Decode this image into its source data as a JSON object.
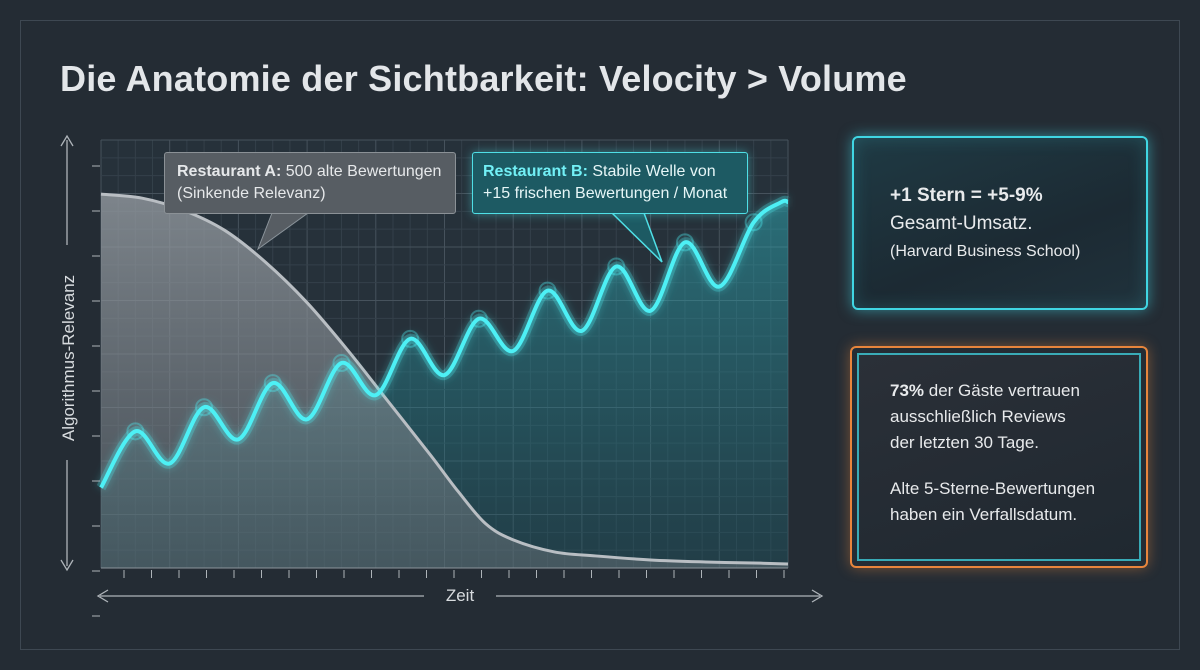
{
  "title": "Die Anatomie der Sichtbarkeit: Velocity > Volume",
  "colors": {
    "restaurant_a": "#9aa0a6",
    "restaurant_b": "#4df0f5",
    "card_cyan_border": "#40d6e3",
    "card_orange_border": "#e8853c",
    "background": "#242c34"
  },
  "chart_data": {
    "type": "area",
    "xlabel": "Zeit",
    "ylabel": "Algorithmus-Relevanz",
    "xlim": [
      0,
      100
    ],
    "ylim": [
      0,
      100
    ],
    "grid": true,
    "series": [
      {
        "name": "Restaurant A",
        "x": [
          0,
          6,
          12,
          18,
          24,
          30,
          36,
          42,
          48,
          52,
          56,
          60,
          66,
          72,
          80,
          88,
          96,
          100
        ],
        "values": [
          93,
          92,
          89,
          84,
          76,
          66,
          54,
          41,
          28,
          19,
          11,
          7,
          4,
          3,
          2,
          1.5,
          1.2,
          1
        ]
      },
      {
        "name": "Restaurant B",
        "x": [
          0,
          5,
          10,
          15,
          20,
          25,
          30,
          35,
          40,
          45,
          50,
          55,
          60,
          65,
          70,
          75,
          80,
          85,
          90,
          95,
          99,
          100
        ],
        "values": [
          20,
          34,
          26,
          40,
          32,
          46,
          37,
          51,
          43,
          57,
          48,
          62,
          54,
          69,
          59,
          75,
          64,
          81,
          70,
          86,
          91,
          91
        ]
      }
    ],
    "annotations": [
      {
        "series": "Restaurant A",
        "bold": "Restaurant A:",
        "text": " 500 alte Bewertungen",
        "line2": "(Sinkende Relevanz)"
      },
      {
        "series": "Restaurant B",
        "bold": "Restaurant B:",
        "text": " Stabile Welle von",
        "line2": "+15 frischen Bewertungen / Monat"
      }
    ]
  },
  "cards": {
    "stat": {
      "headline": "+1 Stern = +5-9%",
      "subline": "Gesamt-Umsatz.",
      "source": "(Harvard Business School)"
    },
    "trust": {
      "percent": "73%",
      "line1": " der Gäste vertrauen",
      "line2": "ausschließlich Reviews",
      "line3": "der letzten 30 Tage.",
      "line4": "Alte 5-Sterne-Bewertungen",
      "line5": "haben ein Verfallsdatum."
    }
  }
}
